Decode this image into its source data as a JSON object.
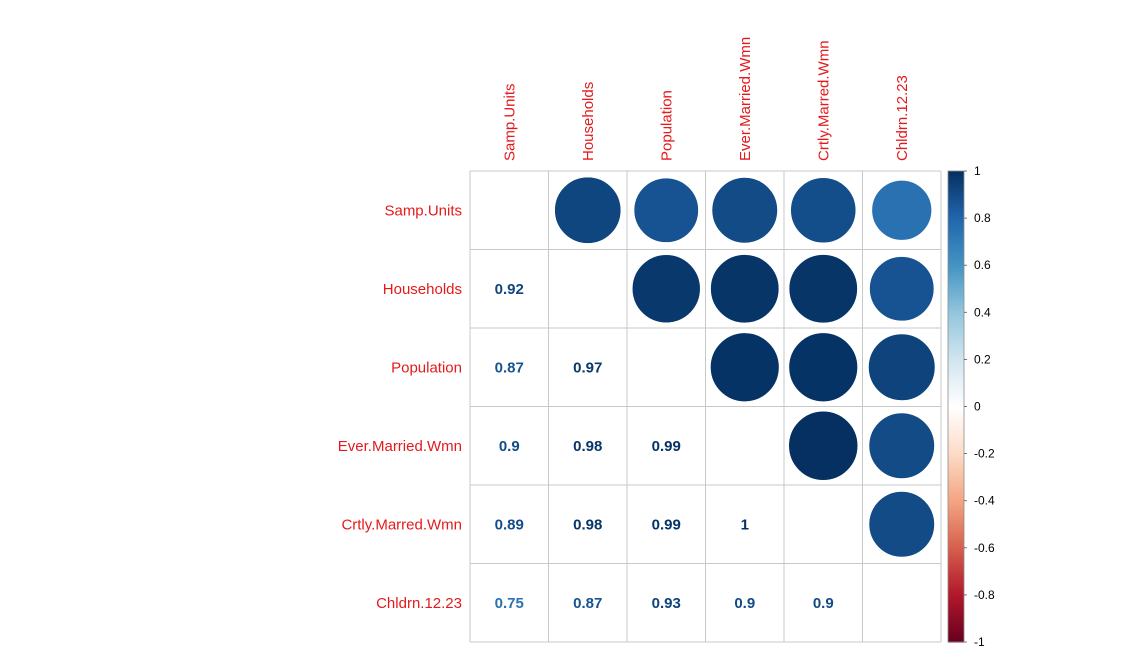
{
  "chart_data": {
    "type": "heatmap",
    "style": "corrplot-mixed",
    "variables": [
      "Samp.Units",
      "Households",
      "Population",
      "Ever.Married.Wmn",
      "Crtly.Marred.Wmn",
      "Chldrn.12.23"
    ],
    "matrix": [
      [
        1,
        0.92,
        0.87,
        0.9,
        0.89,
        0.75
      ],
      [
        0.92,
        1,
        0.97,
        0.98,
        0.98,
        0.87
      ],
      [
        0.87,
        0.97,
        1,
        0.99,
        0.99,
        0.93
      ],
      [
        0.9,
        0.98,
        0.99,
        1,
        1,
        0.9
      ],
      [
        0.89,
        0.98,
        0.99,
        1,
        1,
        0.9
      ],
      [
        0.75,
        0.87,
        0.93,
        0.9,
        0.9,
        1
      ]
    ],
    "lower_labels": [
      {
        "row": 1,
        "col": 0,
        "text": "0.92"
      },
      {
        "row": 2,
        "col": 0,
        "text": "0.87"
      },
      {
        "row": 2,
        "col": 1,
        "text": "0.97"
      },
      {
        "row": 3,
        "col": 0,
        "text": "0.9"
      },
      {
        "row": 3,
        "col": 1,
        "text": "0.98"
      },
      {
        "row": 3,
        "col": 2,
        "text": "0.99"
      },
      {
        "row": 4,
        "col": 0,
        "text": "0.89"
      },
      {
        "row": 4,
        "col": 1,
        "text": "0.98"
      },
      {
        "row": 4,
        "col": 2,
        "text": "0.99"
      },
      {
        "row": 4,
        "col": 3,
        "text": "1"
      },
      {
        "row": 5,
        "col": 0,
        "text": "0.75"
      },
      {
        "row": 5,
        "col": 1,
        "text": "0.87"
      },
      {
        "row": 5,
        "col": 2,
        "text": "0.93"
      },
      {
        "row": 5,
        "col": 3,
        "text": "0.9"
      },
      {
        "row": 5,
        "col": 4,
        "text": "0.9"
      }
    ],
    "upper_glyph": "circle",
    "diagonal": "blank",
    "colorbar": {
      "range": [
        -1,
        1
      ],
      "ticks": [
        "1",
        "0.8",
        "0.6",
        "0.4",
        "0.2",
        "0",
        "-0.2",
        "-0.4",
        "-0.6",
        "-0.8",
        "-1"
      ],
      "colors": [
        "#67001F",
        "#B2182B",
        "#D6604D",
        "#F4A582",
        "#FDDBC7",
        "#FFFFFF",
        "#D1E5F0",
        "#92C5DE",
        "#4393C3",
        "#2166AC",
        "#053061"
      ]
    },
    "label_color": "#E41A1C",
    "grid": true
  }
}
